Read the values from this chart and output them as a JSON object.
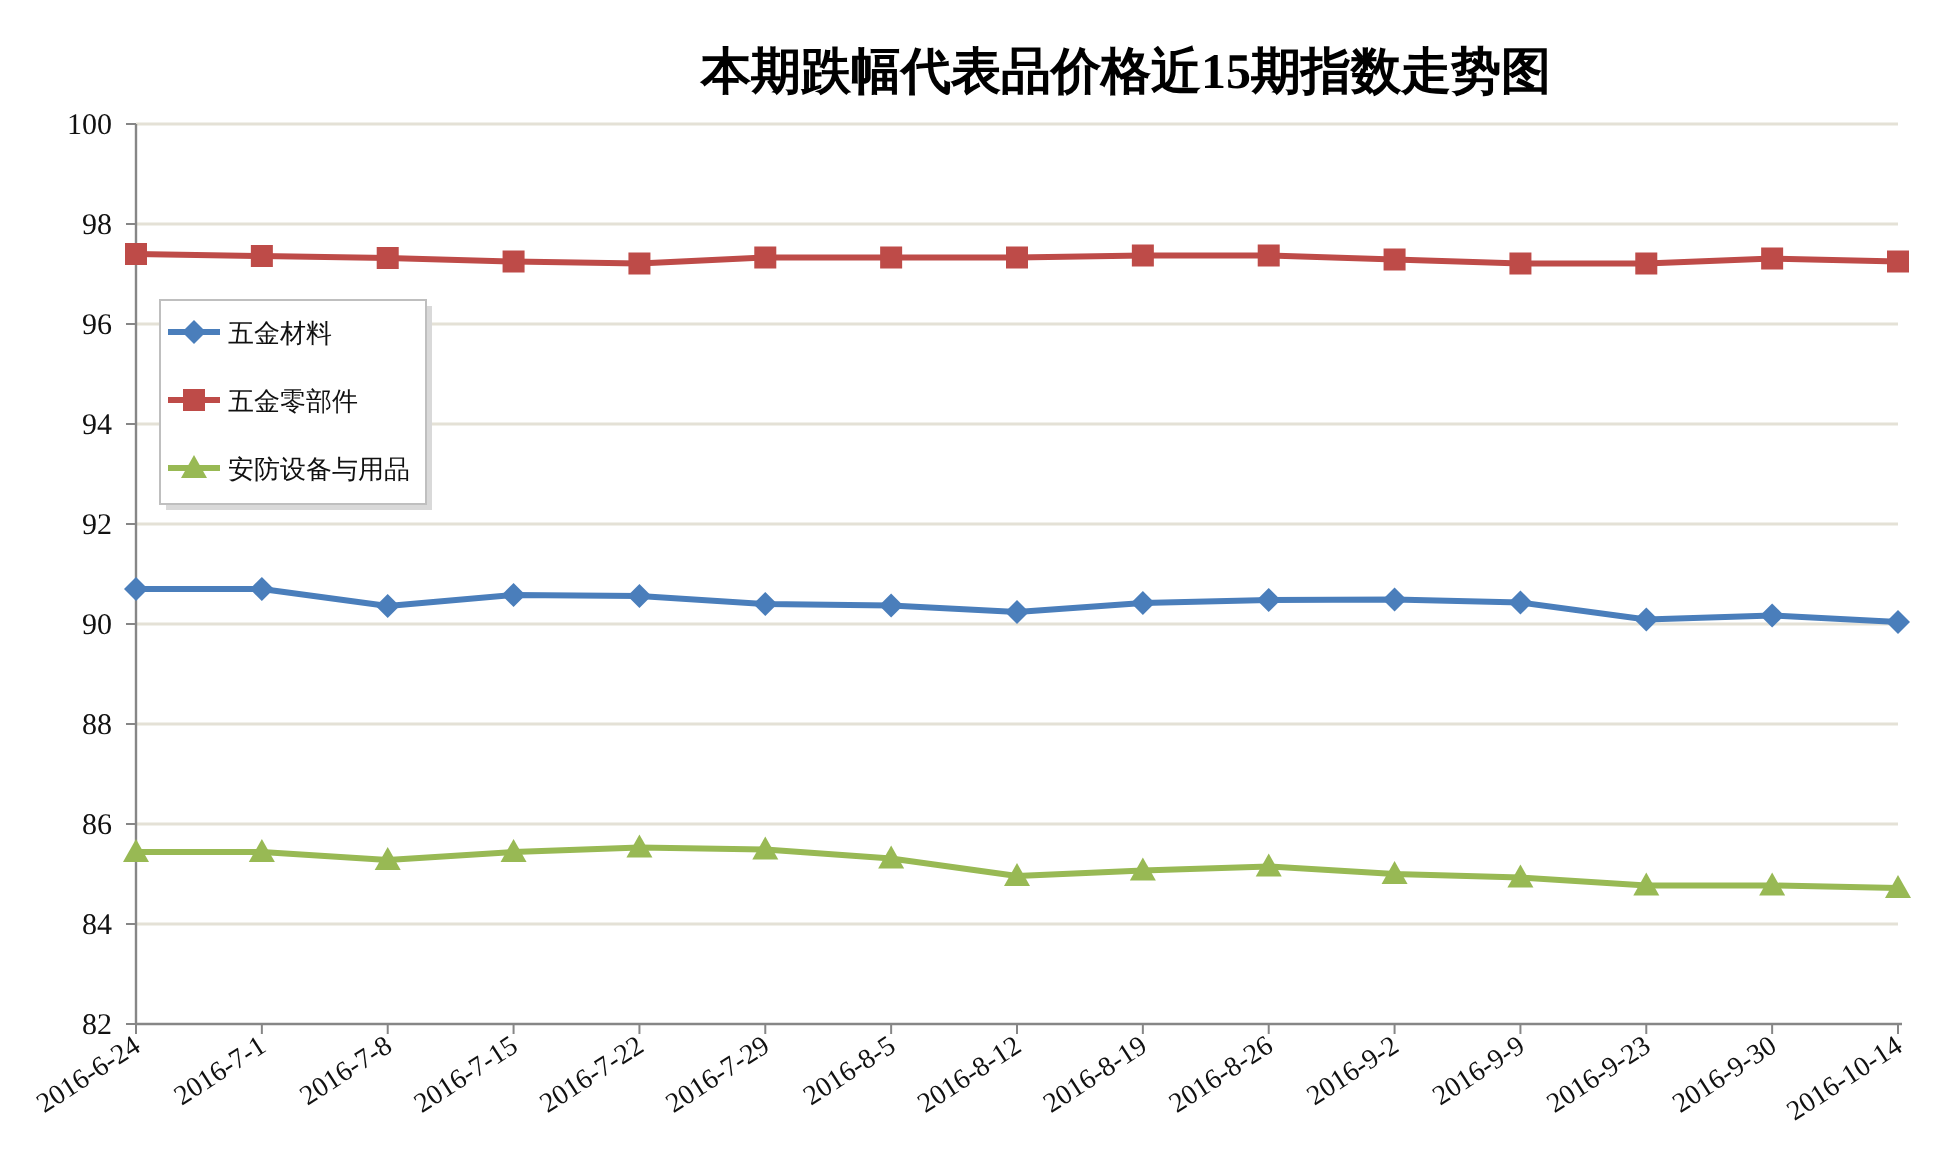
{
  "chart_data": {
    "type": "line",
    "title": "本期跌幅代表品价格近15期指数走势图",
    "categories": [
      "2016-6-24",
      "2016-7-1",
      "2016-7-8",
      "2016-7-15",
      "2016-7-22",
      "2016-7-29",
      "2016-8-5",
      "2016-8-12",
      "2016-8-19",
      "2016-8-26",
      "2016-9-2",
      "2016-9-9",
      "2016-9-23",
      "2016-9-30",
      "2016-10-14"
    ],
    "series": [
      {
        "name": "五金材料",
        "color": "#4a7ebb",
        "marker": "diamond",
        "values": [
          90.7,
          90.7,
          90.36,
          90.58,
          90.56,
          90.4,
          90.37,
          90.24,
          90.42,
          90.48,
          90.49,
          90.43,
          90.09,
          90.17,
          90.04
        ]
      },
      {
        "name": "五金零部件",
        "color": "#be4b48",
        "marker": "square",
        "values": [
          97.4,
          97.36,
          97.32,
          97.25,
          97.21,
          97.33,
          97.33,
          97.33,
          97.37,
          97.37,
          97.29,
          97.21,
          97.21,
          97.31,
          97.25
        ]
      },
      {
        "name": "安防设备与用品",
        "color": "#98b954",
        "marker": "triangle",
        "values": [
          85.44,
          85.44,
          85.28,
          85.44,
          85.53,
          85.49,
          85.31,
          84.96,
          85.07,
          85.15,
          85.0,
          84.93,
          84.77,
          84.77,
          84.72
        ]
      }
    ],
    "ylim": [
      82,
      100
    ],
    "yticks": [
      82,
      84,
      86,
      88,
      90,
      92,
      94,
      96,
      98,
      100
    ],
    "grid": "y",
    "legend": "top left"
  }
}
